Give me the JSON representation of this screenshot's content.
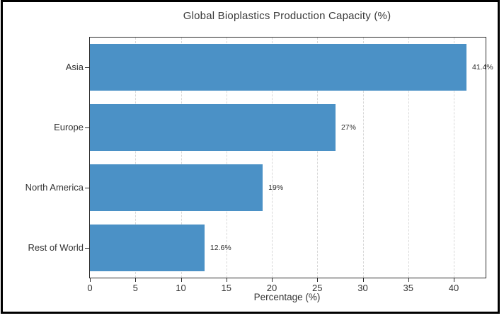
{
  "chart_data": {
    "type": "bar",
    "orientation": "horizontal",
    "title": "Global Bioplastics Production Capacity (%)",
    "xlabel": "Percentage (%)",
    "ylabel": "",
    "categories": [
      "Asia",
      "Europe",
      "North America",
      "Rest of World"
    ],
    "values": [
      41.4,
      27,
      19,
      12.6
    ],
    "bar_labels": [
      "41.4%",
      "27%",
      "19%",
      "12.6%"
    ],
    "xticks": [
      "0",
      "5",
      "10",
      "15",
      "20",
      "25",
      "30",
      "35",
      "40"
    ],
    "xtick_values": [
      0,
      5,
      10,
      15,
      20,
      25,
      30,
      35,
      40
    ],
    "xlim": [
      0,
      43.5
    ],
    "grid": "vertical-dashed",
    "legend": false,
    "colors": {
      "bar": "#4B91C6",
      "gridline": "#d8d8d8",
      "spine": "#2b2b2b",
      "text": "#333333",
      "frame": "#000000",
      "background": "#ffffff"
    }
  }
}
